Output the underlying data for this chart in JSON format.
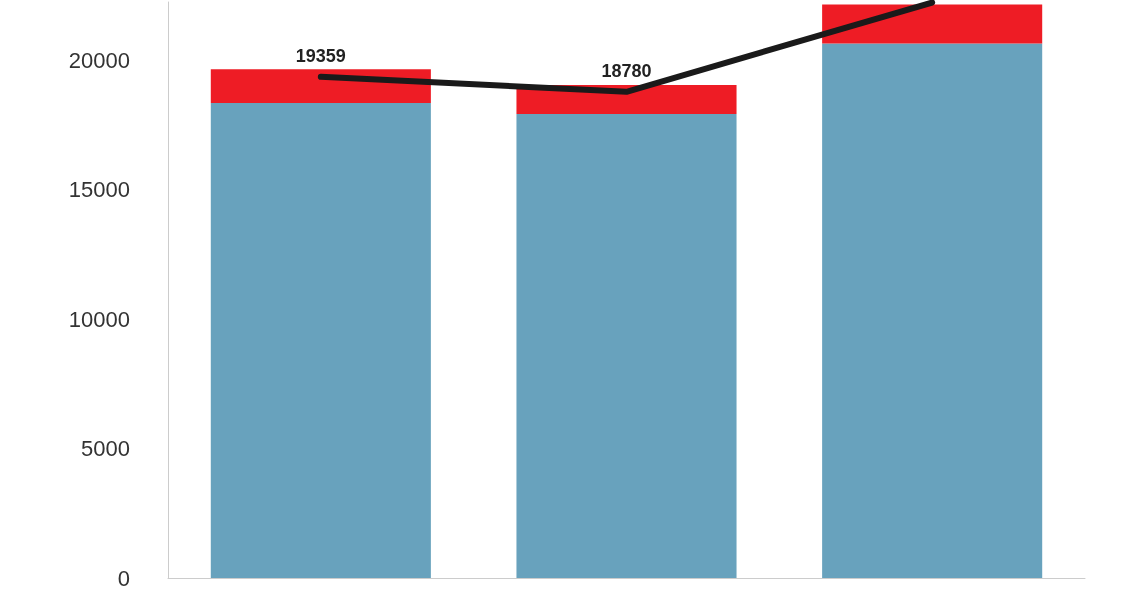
{
  "chart_data": {
    "type": "bar",
    "stacked": true,
    "categories": [
      null,
      null,
      null
    ],
    "series": [
      {
        "color": "#68a2bd",
        "values": [
          18350,
          17920,
          20650
        ]
      },
      {
        "color": "#ee1c25",
        "values": [
          1300,
          1120,
          1500
        ]
      },
      {
        "type": "line",
        "color": "#1a1a1a",
        "values": [
          19359,
          18780,
          22230
        ],
        "value_labels": [
          "19359",
          "18780",
          null
        ]
      }
    ],
    "ylim": [
      0,
      22250
    ],
    "yticks": [
      0,
      5000,
      10000,
      15000,
      20000
    ],
    "grid": false,
    "legend": false,
    "marker": "none",
    "line_style": "solid"
  }
}
